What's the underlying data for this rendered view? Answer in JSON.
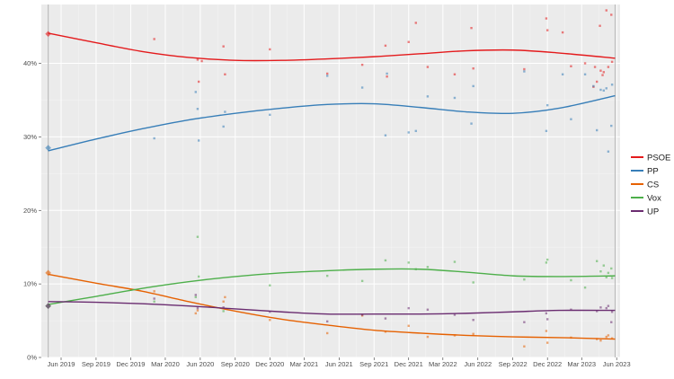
{
  "chart_data": {
    "type": "scatter",
    "title": "",
    "xlabel": "",
    "ylabel": "",
    "x_range": [
      "2019-04-10",
      "2023-06-10"
    ],
    "y_range": [
      0,
      48
    ],
    "grid": true,
    "legend_placement": "right",
    "x_ticks": [
      {
        "date": "2019-06-01",
        "label": "Jun 2019"
      },
      {
        "date": "2019-09-01",
        "label": "Sep 2019"
      },
      {
        "date": "2019-12-01",
        "label": "Dec 2019"
      },
      {
        "date": "2020-03-01",
        "label": "Mar 2020"
      },
      {
        "date": "2020-06-01",
        "label": "Jun 2020"
      },
      {
        "date": "2020-09-01",
        "label": "Sep 2020"
      },
      {
        "date": "2020-12-01",
        "label": "Dec 2020"
      },
      {
        "date": "2021-03-01",
        "label": "Mar 2021"
      },
      {
        "date": "2021-06-01",
        "label": "Jun 2021"
      },
      {
        "date": "2021-09-01",
        "label": "Sep 2021"
      },
      {
        "date": "2021-12-01",
        "label": "Dec 2021"
      },
      {
        "date": "2022-03-01",
        "label": "Mar 2022"
      },
      {
        "date": "2022-06-01",
        "label": "Jun 2022"
      },
      {
        "date": "2022-09-01",
        "label": "Sep 2022"
      },
      {
        "date": "2022-12-01",
        "label": "Dec 2022"
      },
      {
        "date": "2023-03-01",
        "label": "Mar 2023"
      },
      {
        "date": "2023-06-01",
        "label": "Jun 2023"
      }
    ],
    "y_ticks": [
      {
        "value": 0,
        "label": "0%"
      },
      {
        "value": 10,
        "label": "10%"
      },
      {
        "value": 20,
        "label": "20%"
      },
      {
        "value": 30,
        "label": "30%"
      },
      {
        "value": 40,
        "label": "40%"
      }
    ],
    "reference_lines": [
      "2019-04-28",
      "2023-05-28"
    ],
    "series": [
      {
        "name": "PSOE",
        "color": "#e41a1c",
        "election": {
          "date": "2019-04-28",
          "value": 44.0
        },
        "trend": [
          {
            "date": "2019-04-28",
            "value": 44.1
          },
          {
            "date": "2019-09-01",
            "value": 42.8
          },
          {
            "date": "2020-01-01",
            "value": 41.6
          },
          {
            "date": "2020-05-01",
            "value": 40.8
          },
          {
            "date": "2020-09-01",
            "value": 40.4
          },
          {
            "date": "2021-01-01",
            "value": 40.4
          },
          {
            "date": "2021-05-01",
            "value": 40.6
          },
          {
            "date": "2021-09-01",
            "value": 40.9
          },
          {
            "date": "2022-01-01",
            "value": 41.3
          },
          {
            "date": "2022-05-01",
            "value": 41.7
          },
          {
            "date": "2022-09-01",
            "value": 41.8
          },
          {
            "date": "2023-01-01",
            "value": 41.4
          },
          {
            "date": "2023-05-28",
            "value": 40.7
          }
        ],
        "polls": [
          {
            "date": "2020-02-01",
            "value": 43.3
          },
          {
            "date": "2020-05-25",
            "value": 40.5
          },
          {
            "date": "2020-05-28",
            "value": 37.5
          },
          {
            "date": "2020-06-05",
            "value": 40.3
          },
          {
            "date": "2020-08-01",
            "value": 42.3
          },
          {
            "date": "2020-08-05",
            "value": 38.5
          },
          {
            "date": "2020-12-01",
            "value": 41.9
          },
          {
            "date": "2021-05-01",
            "value": 38.6
          },
          {
            "date": "2021-08-01",
            "value": 39.8
          },
          {
            "date": "2021-10-01",
            "value": 42.4
          },
          {
            "date": "2021-10-05",
            "value": 38.2
          },
          {
            "date": "2021-12-01",
            "value": 42.9
          },
          {
            "date": "2021-12-20",
            "value": 45.5
          },
          {
            "date": "2022-01-20",
            "value": 39.5
          },
          {
            "date": "2022-04-01",
            "value": 38.5
          },
          {
            "date": "2022-05-15",
            "value": 44.8
          },
          {
            "date": "2022-05-20",
            "value": 39.3
          },
          {
            "date": "2022-10-01",
            "value": 39.2
          },
          {
            "date": "2022-11-28",
            "value": 46.1
          },
          {
            "date": "2022-12-01",
            "value": 44.5
          },
          {
            "date": "2023-01-10",
            "value": 44.2
          },
          {
            "date": "2023-02-01",
            "value": 39.6
          },
          {
            "date": "2023-03-10",
            "value": 40.0
          },
          {
            "date": "2023-04-01",
            "value": 36.8
          },
          {
            "date": "2023-04-05",
            "value": 39.5
          },
          {
            "date": "2023-04-10",
            "value": 37.5
          },
          {
            "date": "2023-04-18",
            "value": 45.1
          },
          {
            "date": "2023-04-20",
            "value": 39.0
          },
          {
            "date": "2023-04-25",
            "value": 38.4
          },
          {
            "date": "2023-04-28",
            "value": 38.8
          },
          {
            "date": "2023-05-05",
            "value": 47.2
          },
          {
            "date": "2023-05-10",
            "value": 39.5
          },
          {
            "date": "2023-05-18",
            "value": 46.6
          },
          {
            "date": "2023-05-20",
            "value": 40.2
          }
        ]
      },
      {
        "name": "PP",
        "color": "#377eb8",
        "election": {
          "date": "2019-04-28",
          "value": 28.5
        },
        "trend": [
          {
            "date": "2019-04-28",
            "value": 28.1
          },
          {
            "date": "2019-09-01",
            "value": 29.7
          },
          {
            "date": "2020-01-01",
            "value": 31.1
          },
          {
            "date": "2020-05-01",
            "value": 32.3
          },
          {
            "date": "2020-09-01",
            "value": 33.2
          },
          {
            "date": "2021-01-01",
            "value": 33.9
          },
          {
            "date": "2021-05-01",
            "value": 34.4
          },
          {
            "date": "2021-09-01",
            "value": 34.5
          },
          {
            "date": "2022-01-01",
            "value": 34.0
          },
          {
            "date": "2022-05-01",
            "value": 33.4
          },
          {
            "date": "2022-09-01",
            "value": 33.2
          },
          {
            "date": "2023-01-01",
            "value": 33.9
          },
          {
            "date": "2023-05-28",
            "value": 35.6
          }
        ],
        "polls": [
          {
            "date": "2020-02-01",
            "value": 29.8
          },
          {
            "date": "2020-05-20",
            "value": 36.1
          },
          {
            "date": "2020-05-25",
            "value": 33.8
          },
          {
            "date": "2020-05-28",
            "value": 29.5
          },
          {
            "date": "2020-08-01",
            "value": 31.4
          },
          {
            "date": "2020-08-05",
            "value": 33.4
          },
          {
            "date": "2020-12-01",
            "value": 33.0
          },
          {
            "date": "2021-05-01",
            "value": 38.3
          },
          {
            "date": "2021-08-01",
            "value": 36.7
          },
          {
            "date": "2021-10-01",
            "value": 30.2
          },
          {
            "date": "2021-10-05",
            "value": 38.6
          },
          {
            "date": "2021-12-01",
            "value": 30.6
          },
          {
            "date": "2021-12-20",
            "value": 30.8
          },
          {
            "date": "2022-01-20",
            "value": 35.5
          },
          {
            "date": "2022-04-01",
            "value": 35.3
          },
          {
            "date": "2022-05-15",
            "value": 31.8
          },
          {
            "date": "2022-05-20",
            "value": 36.9
          },
          {
            "date": "2022-10-01",
            "value": 38.9
          },
          {
            "date": "2022-11-28",
            "value": 30.8
          },
          {
            "date": "2022-12-01",
            "value": 34.3
          },
          {
            "date": "2023-01-10",
            "value": 38.5
          },
          {
            "date": "2023-02-01",
            "value": 32.4
          },
          {
            "date": "2023-03-10",
            "value": 38.5
          },
          {
            "date": "2023-04-01",
            "value": 36.9
          },
          {
            "date": "2023-04-10",
            "value": 30.9
          },
          {
            "date": "2023-04-20",
            "value": 36.4
          },
          {
            "date": "2023-04-28",
            "value": 36.3
          },
          {
            "date": "2023-05-05",
            "value": 36.6
          },
          {
            "date": "2023-05-10",
            "value": 28.0
          },
          {
            "date": "2023-05-18",
            "value": 31.5
          },
          {
            "date": "2023-05-20",
            "value": 37.1
          }
        ]
      },
      {
        "name": "CS",
        "color": "#e66101",
        "election": {
          "date": "2019-04-28",
          "value": 11.5
        },
        "trend": [
          {
            "date": "2019-04-28",
            "value": 11.3
          },
          {
            "date": "2019-09-01",
            "value": 10.1
          },
          {
            "date": "2020-01-01",
            "value": 9.0
          },
          {
            "date": "2020-05-01",
            "value": 7.6
          },
          {
            "date": "2020-09-01",
            "value": 6.3
          },
          {
            "date": "2021-01-01",
            "value": 5.2
          },
          {
            "date": "2021-05-01",
            "value": 4.4
          },
          {
            "date": "2021-09-01",
            "value": 3.7
          },
          {
            "date": "2022-01-01",
            "value": 3.3
          },
          {
            "date": "2022-05-01",
            "value": 3.0
          },
          {
            "date": "2022-09-01",
            "value": 2.8
          },
          {
            "date": "2023-01-01",
            "value": 2.7
          },
          {
            "date": "2023-05-28",
            "value": 2.5
          }
        ],
        "polls": [
          {
            "date": "2020-02-01",
            "value": 9.0
          },
          {
            "date": "2020-05-20",
            "value": 6.0
          },
          {
            "date": "2020-05-25",
            "value": 6.4
          },
          {
            "date": "2020-08-01",
            "value": 7.6
          },
          {
            "date": "2020-08-05",
            "value": 8.2
          },
          {
            "date": "2020-12-01",
            "value": 5.1
          },
          {
            "date": "2021-05-01",
            "value": 3.3
          },
          {
            "date": "2021-08-01",
            "value": 5.7
          },
          {
            "date": "2021-10-01",
            "value": 3.5
          },
          {
            "date": "2021-12-01",
            "value": 4.3
          },
          {
            "date": "2022-01-20",
            "value": 2.8
          },
          {
            "date": "2022-04-01",
            "value": 3.0
          },
          {
            "date": "2022-05-20",
            "value": 3.2
          },
          {
            "date": "2022-10-01",
            "value": 1.5
          },
          {
            "date": "2022-11-28",
            "value": 3.6
          },
          {
            "date": "2022-12-01",
            "value": 2.0
          },
          {
            "date": "2023-02-01",
            "value": 2.7
          },
          {
            "date": "2023-04-10",
            "value": 2.5
          },
          {
            "date": "2023-04-20",
            "value": 2.3
          },
          {
            "date": "2023-05-05",
            "value": 2.8
          },
          {
            "date": "2023-05-10",
            "value": 3.0
          },
          {
            "date": "2023-05-20",
            "value": 2.6
          }
        ]
      },
      {
        "name": "Vox",
        "color": "#4daf4a",
        "election": {
          "date": "2019-04-28",
          "value": 7.0
        },
        "trend": [
          {
            "date": "2019-04-28",
            "value": 7.2
          },
          {
            "date": "2019-09-01",
            "value": 8.3
          },
          {
            "date": "2020-01-01",
            "value": 9.4
          },
          {
            "date": "2020-05-01",
            "value": 10.3
          },
          {
            "date": "2020-09-01",
            "value": 11.0
          },
          {
            "date": "2021-01-01",
            "value": 11.5
          },
          {
            "date": "2021-05-01",
            "value": 11.8
          },
          {
            "date": "2021-09-01",
            "value": 12.0
          },
          {
            "date": "2022-01-01",
            "value": 12.0
          },
          {
            "date": "2022-05-01",
            "value": 11.6
          },
          {
            "date": "2022-09-01",
            "value": 11.1
          },
          {
            "date": "2023-01-01",
            "value": 11.0
          },
          {
            "date": "2023-05-28",
            "value": 11.1
          }
        ],
        "polls": [
          {
            "date": "2020-02-01",
            "value": 7.6
          },
          {
            "date": "2020-05-20",
            "value": 8.2
          },
          {
            "date": "2020-05-25",
            "value": 16.4
          },
          {
            "date": "2020-05-28",
            "value": 11.0
          },
          {
            "date": "2020-08-01",
            "value": 6.3
          },
          {
            "date": "2020-12-01",
            "value": 9.8
          },
          {
            "date": "2021-05-01",
            "value": 11.1
          },
          {
            "date": "2021-08-01",
            "value": 10.4
          },
          {
            "date": "2021-10-01",
            "value": 13.2
          },
          {
            "date": "2021-12-01",
            "value": 12.9
          },
          {
            "date": "2021-12-20",
            "value": 12.0
          },
          {
            "date": "2022-01-20",
            "value": 12.3
          },
          {
            "date": "2022-04-01",
            "value": 13.0
          },
          {
            "date": "2022-05-20",
            "value": 10.2
          },
          {
            "date": "2022-10-01",
            "value": 10.6
          },
          {
            "date": "2022-11-28",
            "value": 12.9
          },
          {
            "date": "2022-12-01",
            "value": 13.3
          },
          {
            "date": "2023-02-01",
            "value": 10.5
          },
          {
            "date": "2023-03-10",
            "value": 9.5
          },
          {
            "date": "2023-04-10",
            "value": 13.1
          },
          {
            "date": "2023-04-20",
            "value": 11.7
          },
          {
            "date": "2023-04-28",
            "value": 12.5
          },
          {
            "date": "2023-05-05",
            "value": 10.9
          },
          {
            "date": "2023-05-10",
            "value": 11.5
          },
          {
            "date": "2023-05-18",
            "value": 12.1
          },
          {
            "date": "2023-05-20",
            "value": 10.8
          }
        ]
      },
      {
        "name": "UP",
        "color": "#6a2c70",
        "election": {
          "date": "2019-04-28",
          "value": 7.0
        },
        "trend": [
          {
            "date": "2019-04-28",
            "value": 7.6
          },
          {
            "date": "2019-09-01",
            "value": 7.5
          },
          {
            "date": "2020-01-01",
            "value": 7.3
          },
          {
            "date": "2020-05-01",
            "value": 7.0
          },
          {
            "date": "2020-09-01",
            "value": 6.6
          },
          {
            "date": "2021-01-01",
            "value": 6.2
          },
          {
            "date": "2021-05-01",
            "value": 5.9
          },
          {
            "date": "2021-09-01",
            "value": 5.9
          },
          {
            "date": "2022-01-01",
            "value": 5.9
          },
          {
            "date": "2022-05-01",
            "value": 6.0
          },
          {
            "date": "2022-09-01",
            "value": 6.2
          },
          {
            "date": "2023-01-01",
            "value": 6.4
          },
          {
            "date": "2023-05-28",
            "value": 6.4
          }
        ],
        "polls": [
          {
            "date": "2020-02-01",
            "value": 8.0
          },
          {
            "date": "2020-05-20",
            "value": 8.5
          },
          {
            "date": "2020-05-25",
            "value": 6.7
          },
          {
            "date": "2020-08-01",
            "value": 6.8
          },
          {
            "date": "2020-12-01",
            "value": 6.2
          },
          {
            "date": "2021-05-01",
            "value": 4.9
          },
          {
            "date": "2021-08-01",
            "value": 5.8
          },
          {
            "date": "2021-10-01",
            "value": 5.3
          },
          {
            "date": "2021-12-01",
            "value": 6.7
          },
          {
            "date": "2022-01-20",
            "value": 6.5
          },
          {
            "date": "2022-04-01",
            "value": 5.8
          },
          {
            "date": "2022-05-20",
            "value": 5.1
          },
          {
            "date": "2022-10-01",
            "value": 4.8
          },
          {
            "date": "2022-11-28",
            "value": 6.0
          },
          {
            "date": "2022-12-01",
            "value": 5.2
          },
          {
            "date": "2023-02-01",
            "value": 6.5
          },
          {
            "date": "2023-04-10",
            "value": 6.3
          },
          {
            "date": "2023-04-20",
            "value": 6.8
          },
          {
            "date": "2023-05-05",
            "value": 6.7
          },
          {
            "date": "2023-05-10",
            "value": 7.0
          },
          {
            "date": "2023-05-18",
            "value": 4.8
          },
          {
            "date": "2023-05-20",
            "value": 6.2
          }
        ]
      }
    ]
  }
}
